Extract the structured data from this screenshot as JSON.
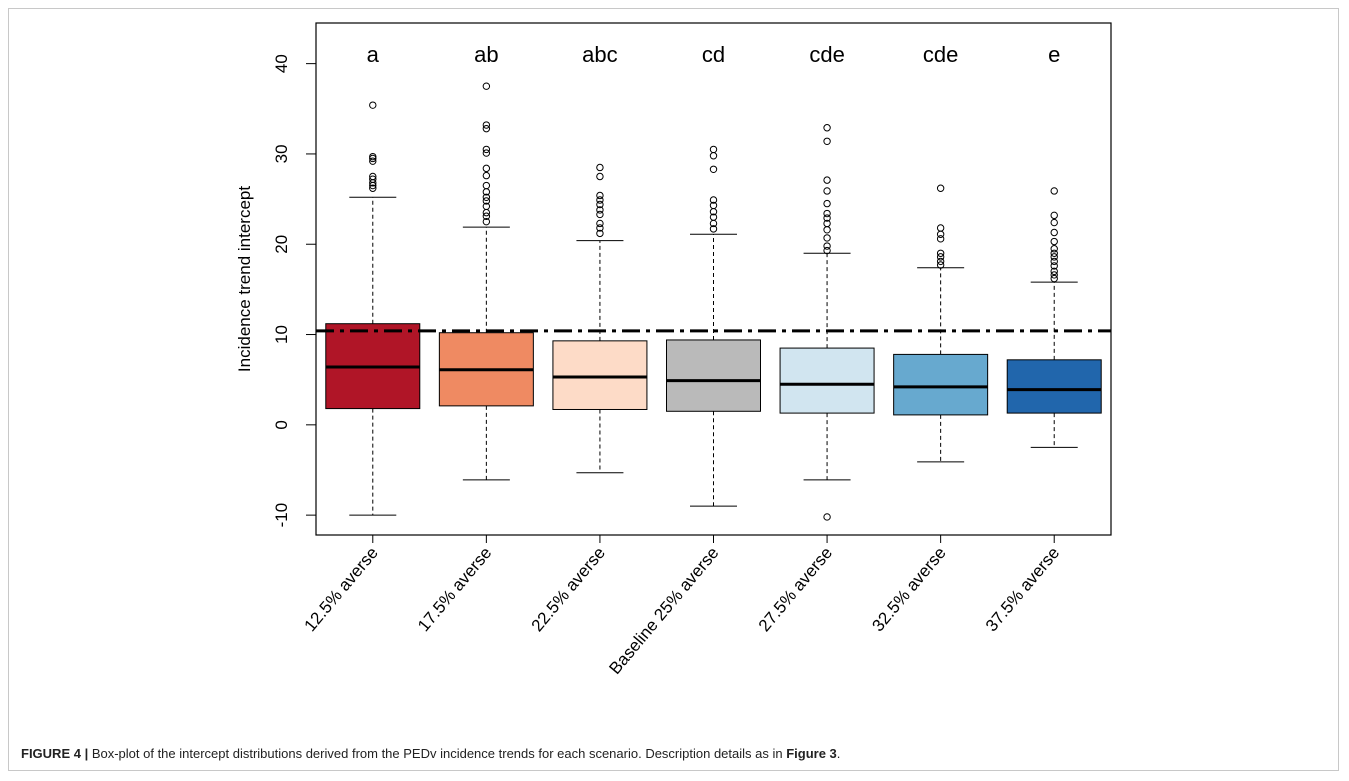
{
  "chart_data": {
    "type": "box",
    "ylabel": "Incidence trend intercept",
    "xlabel": "",
    "ylim": [
      -12.2,
      44.5
    ],
    "yticks": [
      -10,
      0,
      10,
      20,
      30,
      40
    ],
    "reference_line": {
      "y": 10.4,
      "style": "dash-dot",
      "color": "#000000"
    },
    "grid": false,
    "legend": "none",
    "categories": [
      "12.5% averse",
      "17.5% averse",
      "22.5% averse",
      "Baseline 25% averse",
      "27.5% averse",
      "32.5% averse",
      "37.5% averse"
    ],
    "groups": [
      "a",
      "ab",
      "abc",
      "cd",
      "cde",
      "cde",
      "e"
    ],
    "colors": [
      "#b01527",
      "#ef8a62",
      "#fddbc7",
      "#bababa",
      "#d1e5f0",
      "#67a9cf",
      "#2166ac"
    ],
    "boxes": [
      {
        "whisker_low": -10.0,
        "q1": 1.8,
        "median": 6.4,
        "q3": 11.2,
        "whisker_high": 25.2,
        "outliers": [
          26.2,
          26.5,
          26.8,
          27.2,
          27.5,
          29.2,
          29.5,
          29.7,
          35.4
        ]
      },
      {
        "whisker_low": -6.1,
        "q1": 2.1,
        "median": 6.1,
        "q3": 10.2,
        "whisker_high": 21.9,
        "outliers": [
          22.5,
          23.1,
          23.5,
          24.2,
          24.8,
          25.2,
          25.8,
          26.5,
          27.6,
          28.4,
          30.1,
          30.5,
          32.8,
          33.2,
          37.5
        ]
      },
      {
        "whisker_low": -5.3,
        "q1": 1.7,
        "median": 5.3,
        "q3": 9.3,
        "whisker_high": 20.4,
        "outliers": [
          21.2,
          21.8,
          22.3,
          23.3,
          23.8,
          24.4,
          24.9,
          25.4,
          27.5,
          28.5
        ]
      },
      {
        "whisker_low": -9.0,
        "q1": 1.5,
        "median": 4.9,
        "q3": 9.4,
        "whisker_high": 21.1,
        "outliers": [
          21.7,
          22.3,
          23.0,
          23.6,
          24.3,
          24.9,
          28.3,
          29.8,
          30.5
        ]
      },
      {
        "whisker_low": -6.1,
        "q1": 1.3,
        "median": 4.5,
        "q3": 8.5,
        "whisker_high": 19.0,
        "outliers": [
          19.3,
          19.8,
          20.7,
          21.6,
          22.3,
          22.9,
          23.4,
          24.5,
          25.9,
          27.1,
          31.4,
          32.9,
          -10.2
        ]
      },
      {
        "whisker_low": -4.1,
        "q1": 1.1,
        "median": 4.2,
        "q3": 7.8,
        "whisker_high": 17.4,
        "outliers": [
          17.7,
          18.1,
          18.6,
          19.0,
          20.6,
          21.1,
          21.8,
          26.2
        ]
      },
      {
        "whisker_low": -2.5,
        "q1": 1.3,
        "median": 3.9,
        "q3": 7.2,
        "whisker_high": 15.8,
        "outliers": [
          16.2,
          16.6,
          17.0,
          17.6,
          18.1,
          18.6,
          19.0,
          19.5,
          20.3,
          21.3,
          22.4,
          23.2,
          25.9
        ]
      }
    ]
  },
  "caption": {
    "label": "FIGURE 4 |",
    "text": " Box-plot of the intercept distributions derived from the PEDv incidence trends for each scenario. Description details as in ",
    "ref": "Figure 3",
    "end": "."
  }
}
